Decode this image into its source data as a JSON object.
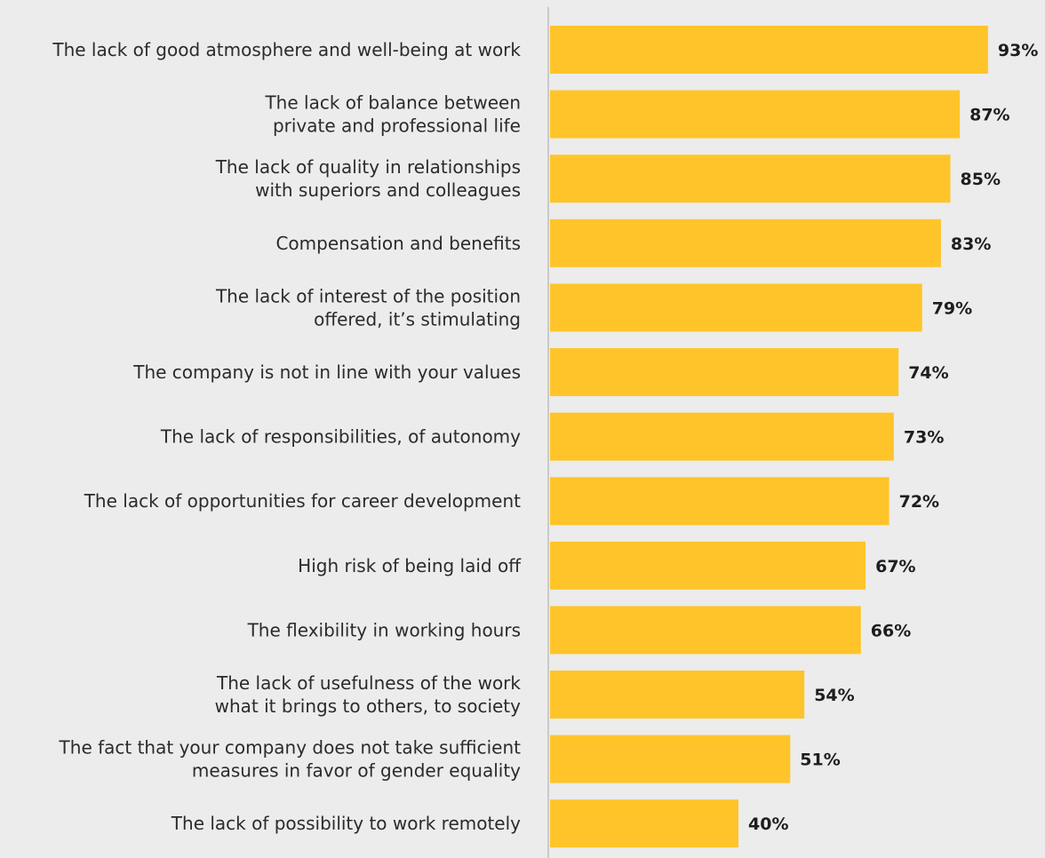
{
  "colors": {
    "background": "#ebeceb",
    "bar": "#ffc429",
    "axis": "#c9cac9",
    "label_text": "#2b2b2b",
    "value_text": "#1e1e1e"
  },
  "chart_data": {
    "type": "bar",
    "orientation": "horizontal",
    "title": "",
    "xlabel": "",
    "ylabel": "",
    "xlim": [
      0,
      100
    ],
    "grid": false,
    "legend": "none",
    "value_suffix": "%",
    "categories": [
      [
        "The lack of good atmosphere and well-being at work"
      ],
      [
        "The lack of balance between",
        "private and professional life"
      ],
      [
        "The lack of quality in relationships",
        "with superiors and colleagues"
      ],
      [
        "Compensation and benefits"
      ],
      [
        "The lack of interest of the position",
        "offered, it’s stimulating"
      ],
      [
        "The company is not in line with your values"
      ],
      [
        "The lack of responsibilities, of autonomy"
      ],
      [
        "The lack of opportunities for career development"
      ],
      [
        "High risk of being laid off"
      ],
      [
        "The flexibility in working hours"
      ],
      [
        "The lack of usefulness of the work",
        "what it brings to others, to society"
      ],
      [
        "The fact that your company does not take sufficient",
        "measures in favor of gender equality"
      ],
      [
        "The lack of possibility to work remotely"
      ]
    ],
    "values": [
      93,
      87,
      85,
      83,
      79,
      74,
      73,
      72,
      67,
      66,
      54,
      51,
      40
    ],
    "value_labels": [
      "93%",
      "87%",
      "85%",
      "83%",
      "79%",
      "74%",
      "73%",
      "72%",
      "67%",
      "66%",
      "54%",
      "51%",
      "40%"
    ]
  }
}
